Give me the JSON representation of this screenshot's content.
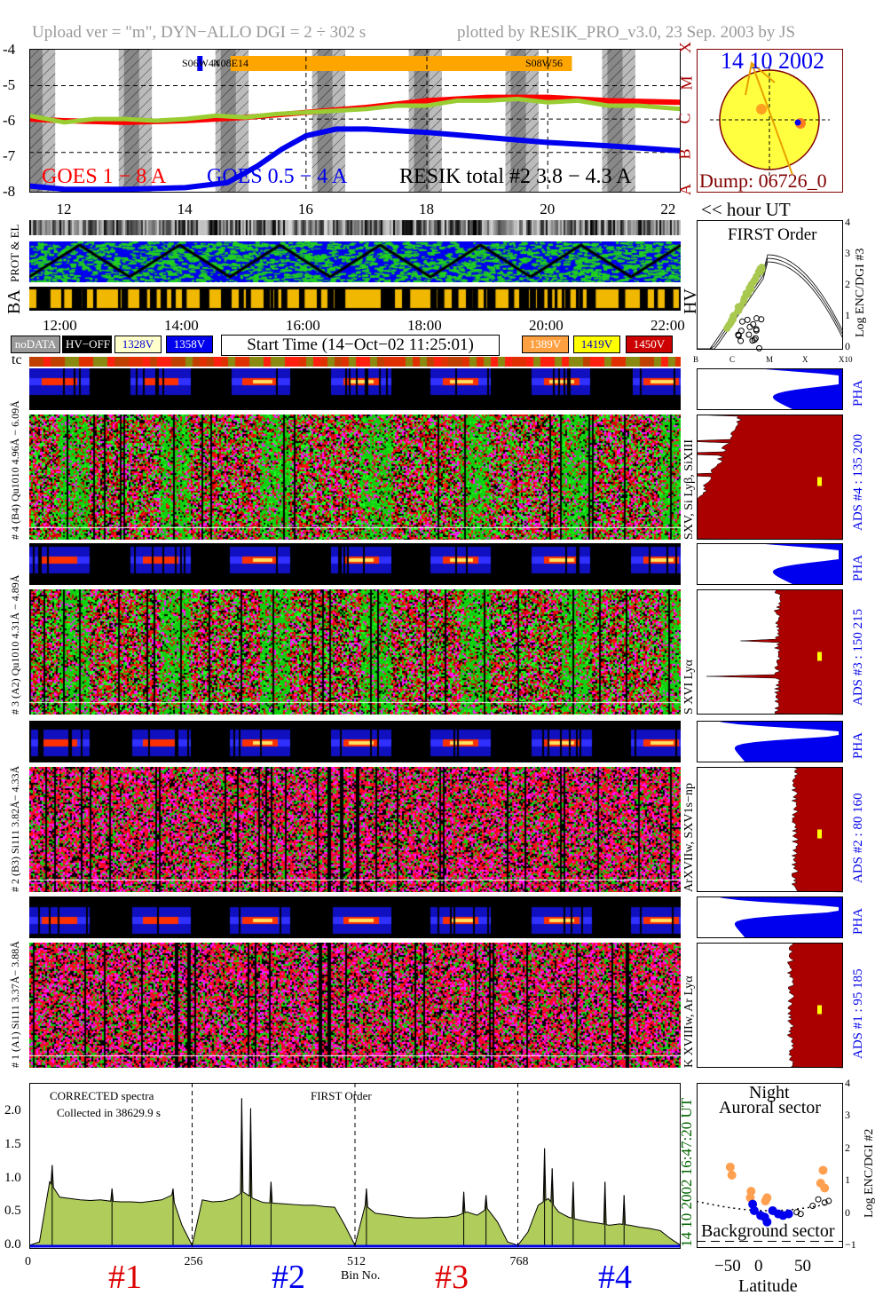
{
  "header": {
    "left": "Upload ver = \"m\", DYN−ALLO DGI =   2 ÷ 302 s",
    "right": "plotted by RESIK_PRO_v3.0, 23 Sep. 2003 by JS"
  },
  "colors": {
    "goes_long": "#ff0000",
    "goes_short": "#0000ee",
    "resik": "#9acd32",
    "dark_red": "#aa0000",
    "pha_blue": "#0000ee",
    "spectrum_fill": "#b0cc5a",
    "orange": "#ffa500",
    "green_text": "#006400"
  },
  "lightcurve": {
    "y_ticks": [
      "-4",
      "-5",
      "-6",
      "-7",
      "-8"
    ],
    "x_ticks": [
      "12",
      "14",
      "16",
      "18",
      "20",
      "22"
    ],
    "class_letters": [
      "X",
      "M",
      "C",
      "B",
      "A"
    ],
    "active_regions": [
      "S06W44",
      "N08E14",
      "S08W56"
    ],
    "legend": {
      "goes_long": "GOES 1 − 8 A",
      "goes_short": "GOES 0.5 − 4 A",
      "resik": "RESIK total #2  3.8 − 4.3 A"
    },
    "hour_label": "<< hour UT"
  },
  "sun": {
    "date": "14 10 2002",
    "dump": "Dump: 06726_0"
  },
  "strips": {
    "prot_label": "PROT & EL",
    "ba_label": "BA",
    "hv_label": "HV",
    "time_ticks": [
      "12:00",
      "14:00",
      "16:00",
      "18:00",
      "20:00",
      "22:00"
    ]
  },
  "legend_boxes": [
    {
      "label": "noDATA",
      "bg": "#999999",
      "fg": "#ffffff"
    },
    {
      "label": "HV−OFF",
      "bg": "#000000",
      "fg": "#ffffff"
    },
    {
      "label": "1328V",
      "bg": "#ffffcc",
      "fg": "#0000cc"
    },
    {
      "label": "1358V",
      "bg": "#0000ee",
      "fg": "#ffffff"
    },
    {
      "label": "1389V",
      "bg": "#ffa040",
      "fg": "#ffffff"
    },
    {
      "label": "1419V",
      "bg": "#ffff00",
      "fg": "#0000cc"
    },
    {
      "label": "1450V",
      "bg": "#cc0000",
      "fg": "#ffffff"
    }
  ],
  "start_time": "Start Time (14−Oct−02 11:25:01)",
  "tc_label": "tc",
  "first_order": {
    "title": "FIRST Order",
    "ylabel": "Log ENC/DGI #3",
    "y_ticks": [
      "4",
      "3",
      "2",
      "1",
      "0"
    ],
    "x_ticks": [
      "B",
      "C",
      "M",
      "X",
      "X10"
    ]
  },
  "channels": [
    {
      "left_label": "# 4 (B4) Qu1010 4.96Å − 6.09Å",
      "lines": "SXV, Si Lyβ, SiXIII",
      "ads": "ADS #4 :  135 200",
      "pha": "PHA"
    },
    {
      "left_label": "# 3 (A2) Qu1010 4.31Å − 4.89Å",
      "lines": "S XVI Lyα",
      "ads": "ADS #3 :  150 215",
      "pha": "PHA"
    },
    {
      "left_label": "# 2 (B3) Si111 3.82Å− 4.33Å",
      "lines": "ArXVIIw, SXV1s−np",
      "ads": "ADS #2 :  80 160",
      "pha": "PHA"
    },
    {
      "left_label": "# 1 (A1) Si111 3.37Å− 3.88Å",
      "lines": "K XVIIIw, Ar Lyα",
      "ads": "ADS #1 :  95 185",
      "pha": "PHA"
    }
  ],
  "chart_data": [
    {
      "type": "line",
      "title": "",
      "xlabel": "hour UT",
      "ylabel": "",
      "xlim": [
        11.42,
        22.2
      ],
      "ylim": [
        -8.2,
        -3.9
      ],
      "grid": true,
      "series": [
        {
          "name": "GOES 1 − 8 A",
          "x": [
            11.42,
            12,
            13,
            14,
            15,
            16,
            17,
            18,
            19,
            20,
            21,
            22.2
          ],
          "y": [
            -6.0,
            -6.05,
            -6.1,
            -6.05,
            -5.95,
            -5.8,
            -5.65,
            -5.45,
            -5.35,
            -5.35,
            -5.45,
            -5.5
          ]
        },
        {
          "name": "GOES 0.5 − 4 A",
          "x": [
            11.42,
            12,
            13,
            14,
            14.7,
            15.2,
            15.6,
            16,
            16.5,
            17,
            18,
            19,
            20,
            21,
            22.2
          ],
          "y": [
            -8.0,
            -8.1,
            -8.1,
            -8.05,
            -7.9,
            -7.4,
            -6.9,
            -6.5,
            -6.3,
            -6.3,
            -6.4,
            -6.55,
            -6.7,
            -6.8,
            -6.95
          ]
        },
        {
          "name": "RESIK total #2  3.8 − 4.3 A",
          "x": [
            11.42,
            12,
            12.5,
            13,
            13.5,
            14,
            14.5,
            15,
            15.5,
            16,
            16.5,
            17,
            17.5,
            18,
            18.5,
            19,
            19.5,
            20,
            20.5,
            21,
            21.5,
            22.2
          ],
          "y": [
            -5.9,
            -6.1,
            -6.0,
            -6.0,
            -6.05,
            -6.0,
            -5.9,
            -5.95,
            -5.85,
            -5.8,
            -5.75,
            -5.7,
            -5.6,
            -5.6,
            -5.45,
            -5.45,
            -5.4,
            -5.5,
            -5.45,
            -5.6,
            -5.6,
            -5.7
          ]
        }
      ]
    },
    {
      "type": "area",
      "title": "FIRST Order",
      "annotations": [
        "CORRECTED spectra",
        "Collected in 38629.9 s"
      ],
      "xlabel": "Bin No.",
      "ylabel": "",
      "xlim": [
        0,
        1024
      ],
      "ylim": [
        0,
        2.43
      ],
      "x_ticks": [
        "0",
        "256",
        "512",
        "768"
      ],
      "y_ticks": [
        "0.0",
        "0.5",
        "1.0",
        "1.5",
        "2.0"
      ],
      "segment_labels": [
        {
          "text": "#1",
          "color": "#dd0000"
        },
        {
          "text": "#2",
          "color": "#0000ee"
        },
        {
          "text": "#3",
          "color": "#dd0000"
        },
        {
          "text": "#4",
          "color": "#0000ee"
        }
      ],
      "side_label": "14 10 2002   16:47:20 UT",
      "bin_step": 16,
      "values": [
        0,
        0.05,
        0.95,
        0.72,
        0.7,
        0.68,
        0.67,
        0.68,
        0.66,
        0.65,
        0.65,
        0.64,
        0.66,
        0.68,
        0.75,
        0.3,
        0,
        0.68,
        0.65,
        0.66,
        0.7,
        0.8,
        0.7,
        0.64,
        0.63,
        0.62,
        0.61,
        0.6,
        0.6,
        0.58,
        0.57,
        0.3,
        0,
        0.6,
        0.48,
        0.46,
        0.44,
        0.42,
        0.41,
        0.41,
        0.42,
        0.42,
        0.44,
        0.5,
        0.45,
        0.55,
        0.35,
        0.05,
        0,
        0.2,
        0.6,
        0.7,
        0.5,
        0.42,
        0.38,
        0.35,
        0.33,
        0.3,
        0.32,
        0.3,
        0.27,
        0.25,
        0.22,
        0.1
      ],
      "peaks": [
        [
          36,
          1.2
        ],
        [
          130,
          0.85
        ],
        [
          226,
          0.85
        ],
        [
          334,
          2.2
        ],
        [
          348,
          2.05
        ],
        [
          380,
          0.95
        ],
        [
          530,
          0.85
        ],
        [
          683,
          0.8
        ],
        [
          718,
          0.75
        ],
        [
          810,
          1.45
        ],
        [
          822,
          1.15
        ],
        [
          855,
          0.95
        ],
        [
          905,
          0.95
        ],
        [
          935,
          0.75
        ]
      ]
    },
    {
      "type": "scatter",
      "title": "Night",
      "subtitle": "Auroral sector",
      "annotation": "Background sector",
      "xlabel": "Latitude",
      "ylabel": "Log ENC/DGI #2",
      "xlim": [
        -90,
        93
      ],
      "ylim": [
        -1,
        4
      ],
      "x_ticks": [
        "−50",
        "0",
        "50"
      ],
      "y_ticks": [
        "4",
        "3",
        "2",
        "1",
        "0",
        "−1"
      ],
      "series": [
        {
          "color": "#ffa050",
          "points": [
            [
              -48,
              1.45
            ],
            [
              -46,
              1.2
            ],
            [
              -22,
              0.7
            ],
            [
              -23,
              0.5
            ],
            [
              -2,
              0.5
            ],
            [
              -4,
              0.4
            ],
            [
              68,
              1.35
            ],
            [
              65,
              0.95
            ],
            [
              70,
              0.8
            ]
          ]
        },
        {
          "color": "#0000ee",
          "points": [
            [
              -20,
              0.3
            ],
            [
              -18,
              0.1
            ],
            [
              -10,
              -0.05
            ],
            [
              -5,
              -0.1
            ],
            [
              -2,
              -0.25
            ],
            [
              5,
              0.1
            ],
            [
              12,
              0.0
            ],
            [
              18,
              -0.05
            ],
            [
              25,
              0.0
            ]
          ]
        },
        {
          "color": "open",
          "points": [
            [
              35,
              0.05
            ],
            [
              40,
              0.0
            ],
            [
              55,
              0.25
            ],
            [
              62,
              0.45
            ],
            [
              70,
              0.35
            ],
            [
              75,
              0.4
            ]
          ]
        }
      ]
    }
  ]
}
